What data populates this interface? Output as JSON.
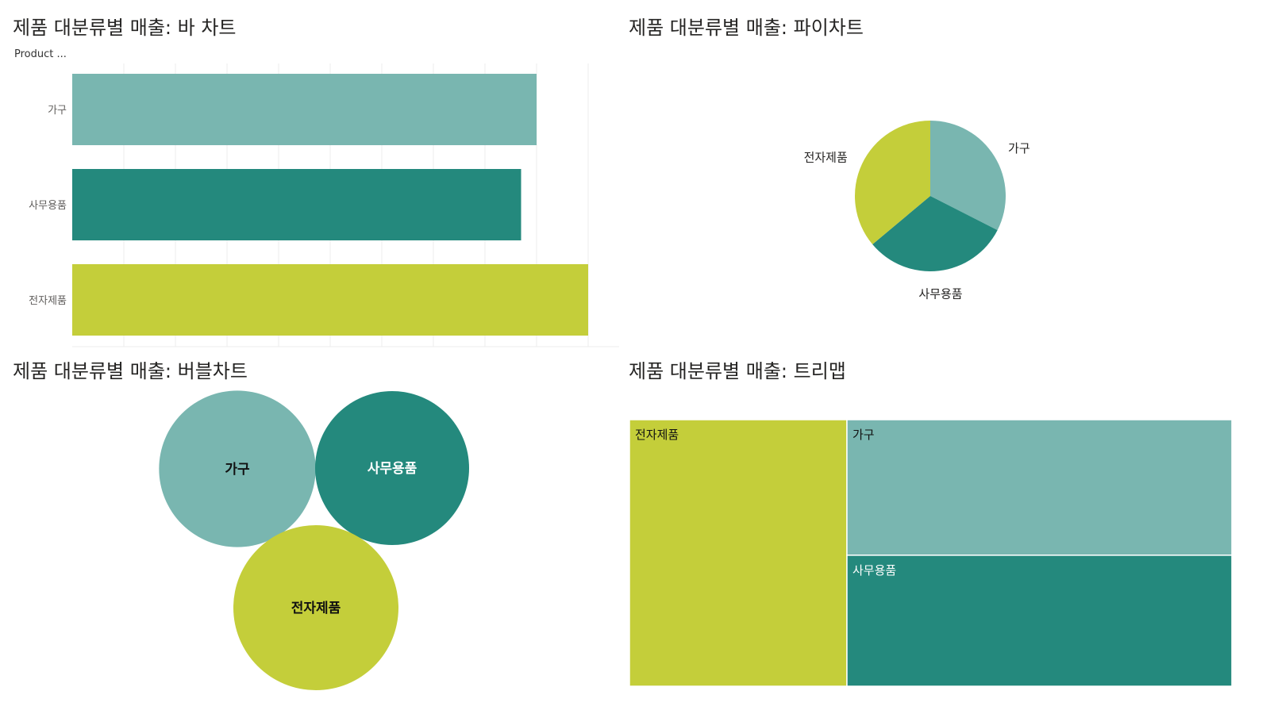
{
  "colors": {
    "가구": "#79b6b0",
    "사무용품": "#24897d",
    "전자제품": "#c4ce3a",
    "grid": "#ececec",
    "label_dark": "#111111",
    "label_light": "#ffffff"
  },
  "bar_panel": {
    "title": "제품 대분류별 매출: 바 차트",
    "axis_caption": "Product ..."
  },
  "pie_panel": {
    "title": "제품 대분류별 매출: 파이차트"
  },
  "bubble_panel": {
    "title": "제품 대분류별 매출: 버블차트"
  },
  "treemap_panel": {
    "title": "제품 대분류별 매출: 트리맵"
  },
  "chart_data": [
    {
      "type": "bar",
      "orientation": "horizontal",
      "title": "제품 대분류별 매출: 바 차트",
      "ylabel": "Product ...",
      "categories": [
        "가구",
        "사무용품",
        "전자제품"
      ],
      "values": [
        0.9,
        0.87,
        1.0
      ],
      "xlim": [
        0,
        1.06
      ],
      "grid": true
    },
    {
      "type": "pie",
      "title": "제품 대분류별 매출: 파이차트",
      "categories": [
        "가구",
        "사무용품",
        "전자제품"
      ],
      "values": [
        0.9,
        0.87,
        1.0
      ]
    },
    {
      "type": "bubble",
      "title": "제품 대분류별 매출: 버블차트",
      "categories": [
        "가구",
        "사무용품",
        "전자제품"
      ],
      "values": [
        0.9,
        0.87,
        1.0
      ]
    },
    {
      "type": "treemap",
      "title": "제품 대분류별 매출: 트리맵",
      "categories": [
        "전자제품",
        "가구",
        "사무용품"
      ],
      "values": [
        1.0,
        0.9,
        0.87
      ]
    }
  ]
}
